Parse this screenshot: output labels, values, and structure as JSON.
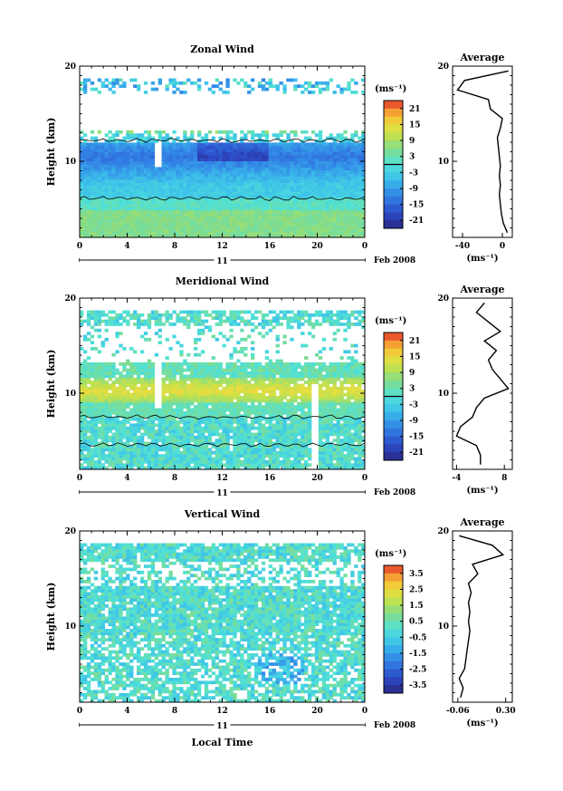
{
  "figure": {
    "xlabel": "Local Time",
    "date_label": "Feb 2008",
    "day_label": "11",
    "unit_label": "(ms⁻¹)",
    "avg_unit_label": "(ms⁻¹)",
    "avg_title": "Average"
  },
  "chart_data": [
    {
      "type": "heatmap",
      "title": "Zonal Wind",
      "ylabel": "Height (km)",
      "xlabel": "Local Time",
      "x_ticks": [
        "0",
        "4",
        "8",
        "12",
        "16",
        "20",
        "0"
      ],
      "xlim": [
        0,
        24
      ],
      "y_ticks": [
        "20",
        "10"
      ],
      "ylim": [
        2,
        20
      ],
      "colorbar": {
        "label": "(ms⁻¹)",
        "ticks": [
          "21",
          "15",
          "9",
          "3",
          "-3",
          "-9",
          "-15",
          "-21"
        ],
        "range": [
          -24,
          24
        ]
      },
      "profile": {
        "title": "Average",
        "x_ticks": [
          "-40",
          "0"
        ],
        "xlim": [
          -50,
          10
        ],
        "xlabel": "(ms⁻¹)",
        "height": [
          2.5,
          3.5,
          4.5,
          5.5,
          6.5,
          7.5,
          8.5,
          9.5,
          10.5,
          11.5,
          12.5,
          13.5,
          14.5,
          15.5,
          16.5,
          17.5,
          18.5,
          19.5
        ],
        "value": [
          5,
          1,
          -1,
          -2,
          -3,
          -2,
          -3,
          -2,
          -3,
          -4,
          -5,
          -2,
          0,
          -12,
          -14,
          -45,
          -38,
          6
        ]
      }
    },
    {
      "type": "heatmap",
      "title": "Meridional Wind",
      "ylabel": "Height (km)",
      "xlabel": "Local Time",
      "x_ticks": [
        "0",
        "4",
        "8",
        "12",
        "16",
        "20",
        "0"
      ],
      "xlim": [
        0,
        24
      ],
      "y_ticks": [
        "20",
        "10"
      ],
      "ylim": [
        2,
        20
      ],
      "colorbar": {
        "label": "(ms⁻¹)",
        "ticks": [
          "21",
          "15",
          "9",
          "3",
          "-3",
          "-9",
          "-15",
          "-21"
        ],
        "range": [
          -24,
          24
        ]
      },
      "profile": {
        "title": "Average",
        "x_ticks": [
          "-4",
          "8"
        ],
        "xlim": [
          -5,
          10
        ],
        "xlabel": "(ms⁻¹)",
        "height": [
          2.5,
          3.5,
          4.5,
          5.5,
          6.5,
          7.5,
          8.5,
          9.5,
          10.5,
          11.5,
          12.5,
          13.5,
          14.5,
          15.5,
          16.5,
          17.5,
          18.5,
          19.5
        ],
        "value": [
          2,
          2,
          1,
          -4,
          -3,
          0,
          1,
          3,
          9,
          7,
          5,
          4,
          6,
          3,
          7,
          4,
          1,
          3
        ]
      }
    },
    {
      "type": "heatmap",
      "title": "Vertical Wind",
      "ylabel": "Height (km)",
      "xlabel": "Local Time",
      "x_ticks": [
        "0",
        "4",
        "8",
        "12",
        "16",
        "20",
        "0"
      ],
      "xlim": [
        0,
        24
      ],
      "y_ticks": [
        "20",
        "10"
      ],
      "ylim": [
        2,
        20
      ],
      "colorbar": {
        "label": "(ms⁻¹)",
        "ticks": [
          "3.5",
          "2.5",
          "1.5",
          "0.5",
          "-0.5",
          "-1.5",
          "-2.5",
          "-3.5"
        ],
        "range": [
          -4,
          4
        ]
      },
      "profile": {
        "title": "Average",
        "x_ticks": [
          "-0.06",
          "0.30"
        ],
        "xlim": [
          -0.1,
          0.35
        ],
        "xlabel": "(ms⁻¹)",
        "height": [
          2.5,
          3.5,
          4.5,
          5.5,
          6.5,
          7.5,
          8.5,
          9.5,
          10.5,
          11.5,
          12.5,
          13.5,
          14.5,
          15.5,
          16.5,
          17.5,
          18.5,
          19.5
        ],
        "value": [
          -0.04,
          -0.02,
          -0.05,
          -0.01,
          0.0,
          0.01,
          0.02,
          0.03,
          0.02,
          0.03,
          0.02,
          0.04,
          0.02,
          0.09,
          0.05,
          0.28,
          0.2,
          -0.05
        ]
      }
    }
  ]
}
